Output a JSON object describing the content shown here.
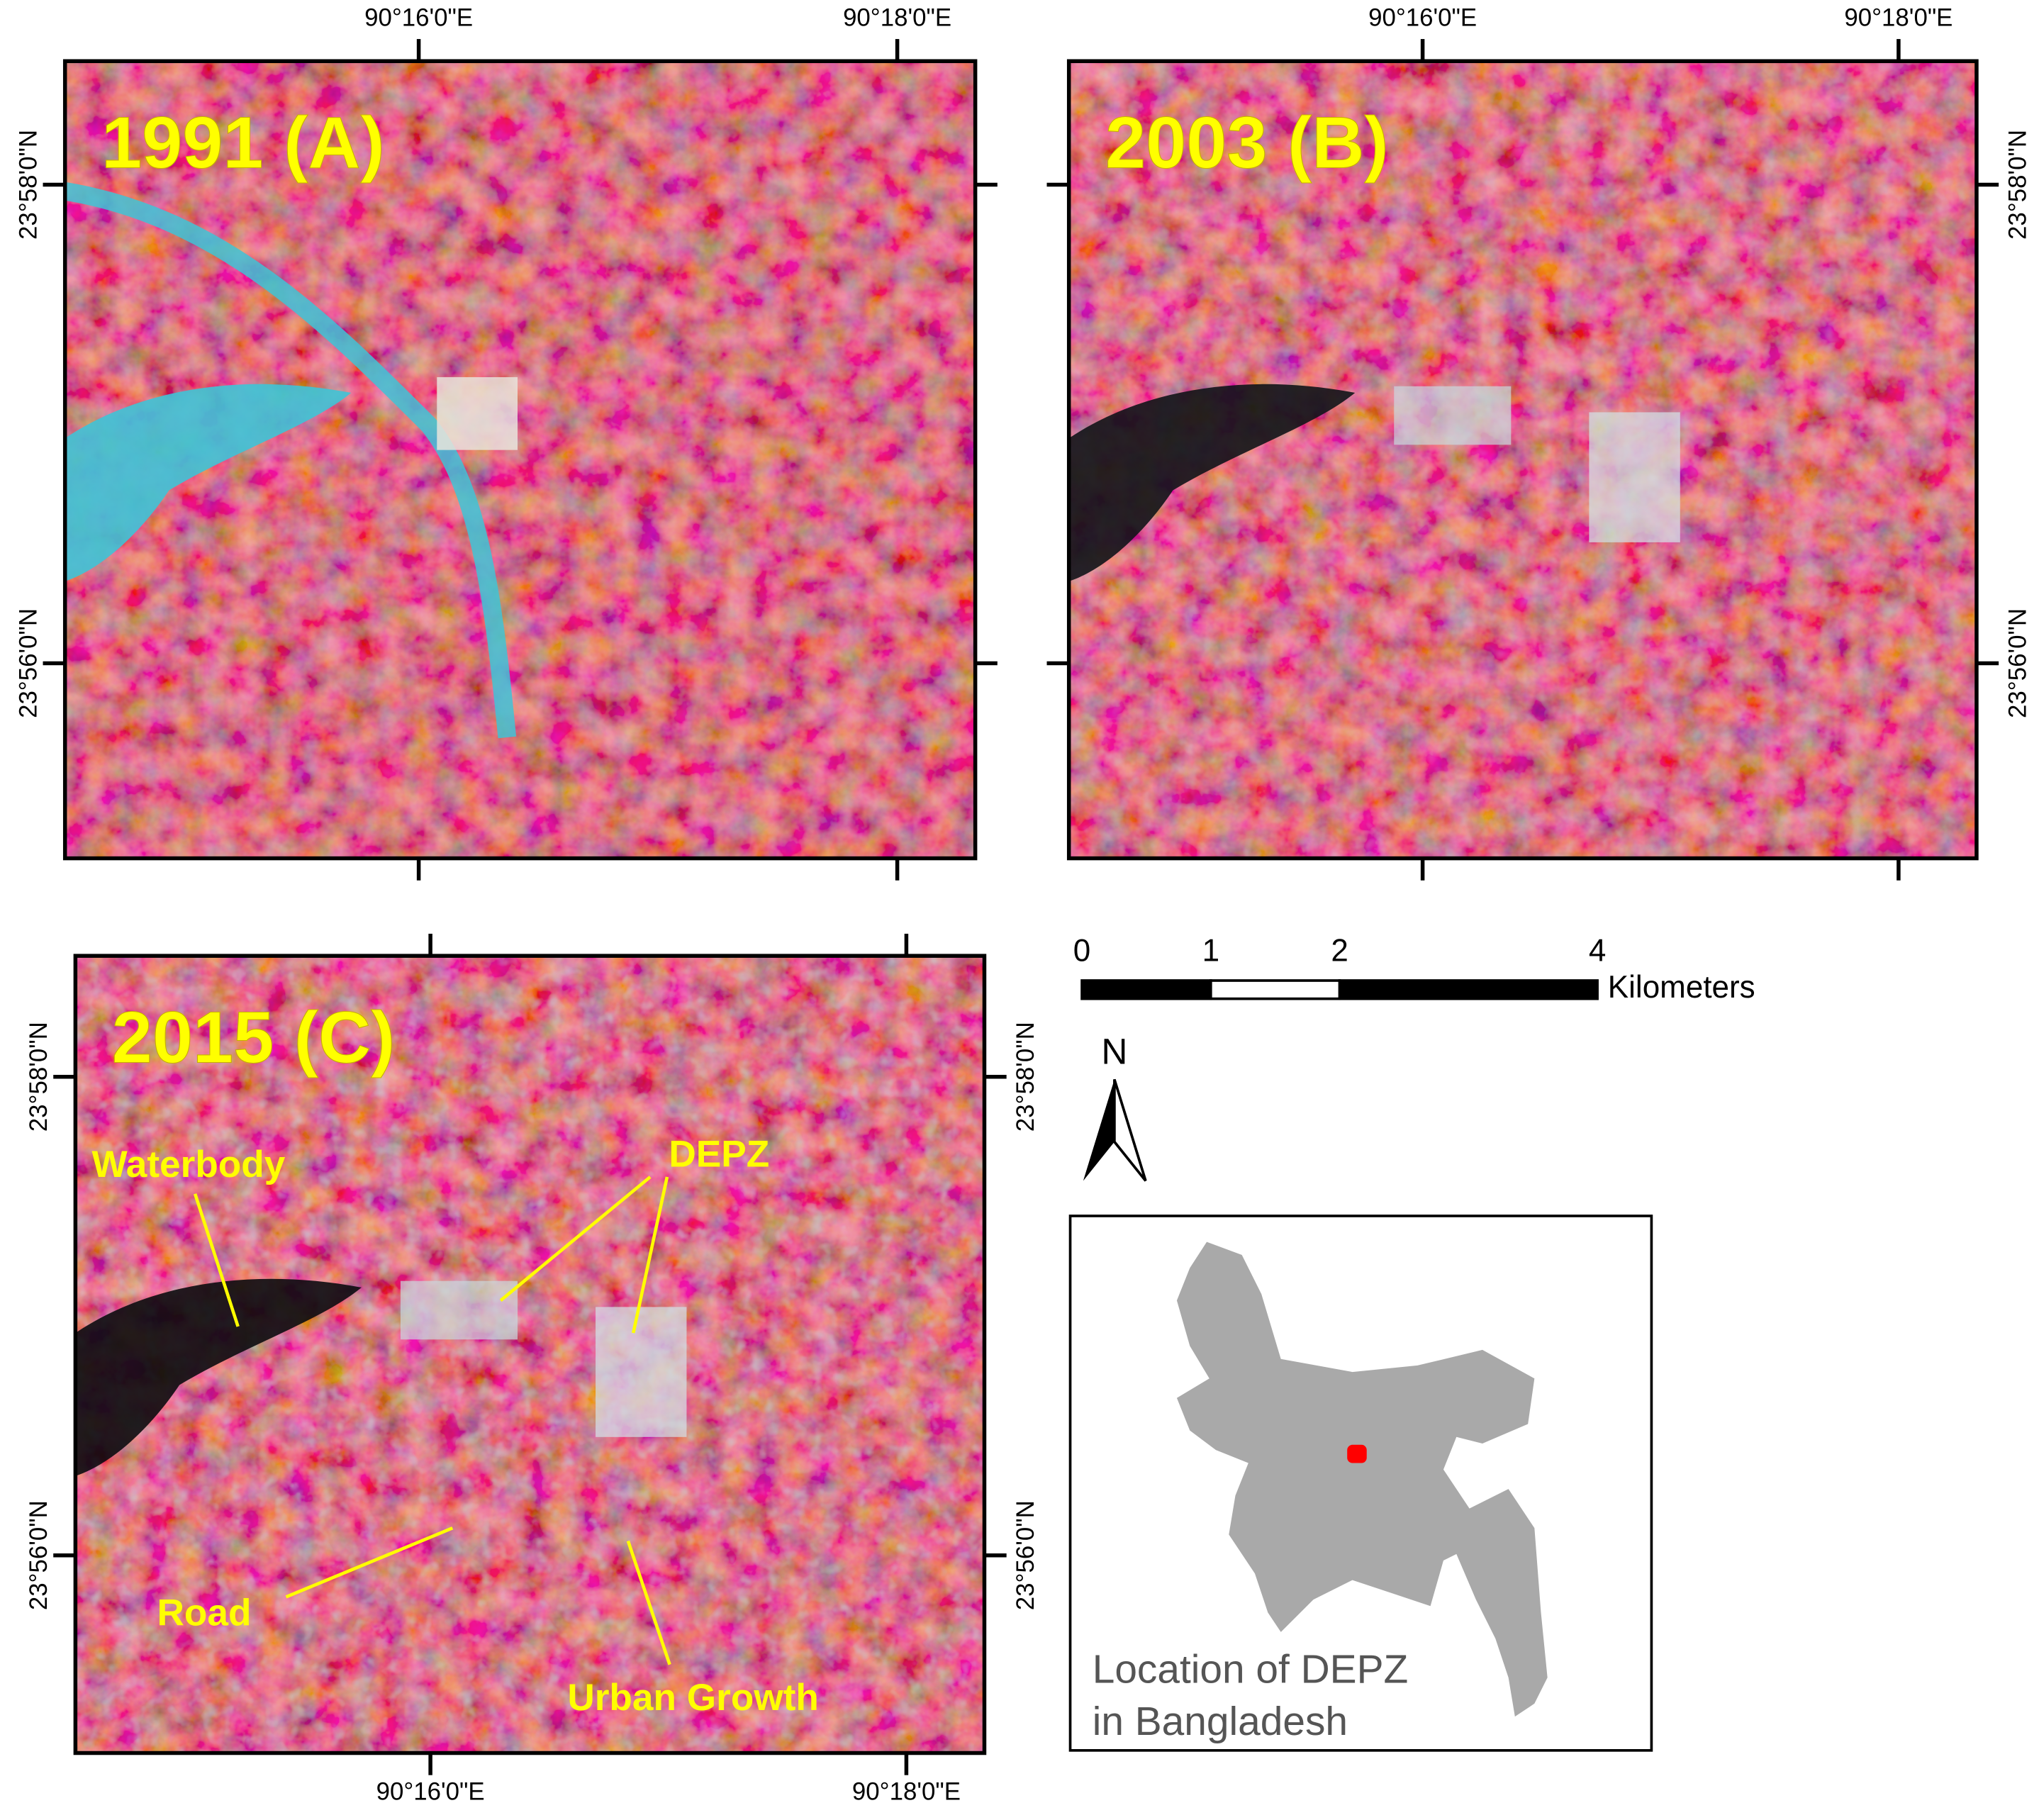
{
  "panels": [
    {
      "title": "1991 (A)",
      "x_labels": [
        "90°16'0\"E",
        "90°18'0\"E"
      ],
      "y_labels": [
        "23°58'0\"N",
        "23°56'0\"N"
      ]
    },
    {
      "title": "2003 (B)",
      "x_labels": [
        "90°16'0\"E",
        "90°18'0\"E"
      ],
      "y_labels": [
        "23°58'0\"N",
        "23°56'0\"N"
      ]
    },
    {
      "title": "2015 (C)",
      "x_labels": [
        "90°16'0\"E",
        "90°18'0\"E"
      ],
      "y_labels": [
        "23°58'0\"N",
        "23°56'0\"N"
      ],
      "annotations": [
        "Waterbody",
        "DEPZ",
        "Road",
        "Urban Growth"
      ]
    }
  ],
  "scale_bar": {
    "ticks": [
      0,
      1,
      2,
      4
    ],
    "unit": "Kilometers"
  },
  "north": "N",
  "inset": {
    "caption": [
      "Location of DEPZ",
      "in Bangladesh"
    ]
  }
}
